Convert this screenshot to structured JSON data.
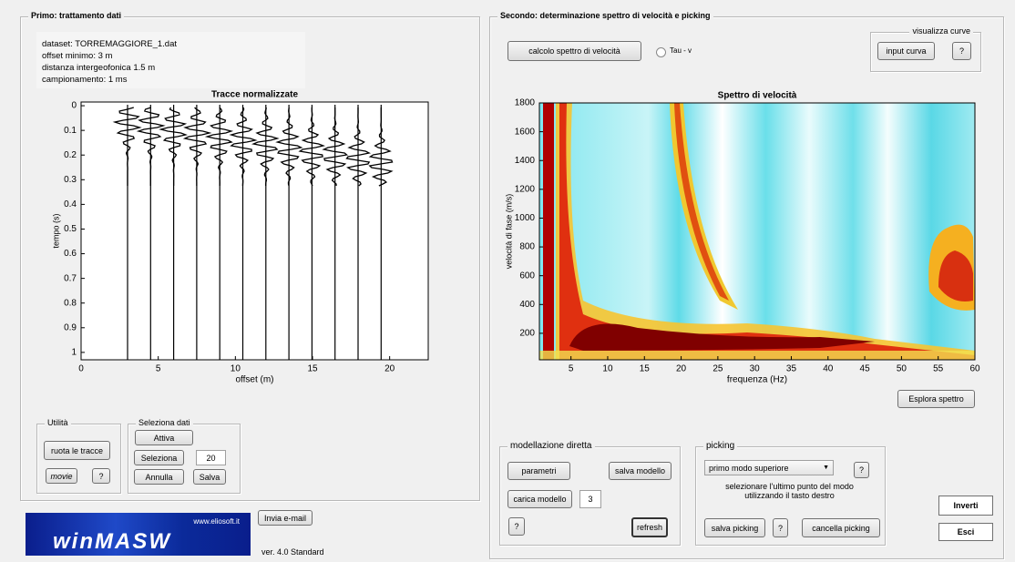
{
  "left_panel": {
    "title": "Primo: trattamento dati",
    "info": [
      "dataset: TORREMAGGIORE_1.dat",
      "offset minimo: 3 m",
      "distanza intergeofonica 1.5 m",
      "campionamento: 1 ms"
    ],
    "utilita": {
      "title": "Utilità",
      "ruota": "ruota le tracce",
      "movie": "movie",
      "help": "?"
    },
    "seleziona_dati": {
      "title": "Seleziona dati",
      "attiva": "Attiva",
      "seleziona": "Seleziona",
      "count": "20",
      "annulla": "Annulla",
      "salva": "Salva"
    }
  },
  "footer": {
    "logo_url": "www.eliosoft.it",
    "logo": "winMASW",
    "email": "Invia e-mail",
    "version": "ver. 4.0 Standard"
  },
  "right_panel": {
    "title": "Secondo: determinazione spettro di velocità e picking",
    "calcolo": "calcolo spettro di velocità",
    "radio": "Tau - v",
    "visualizza": {
      "title": "visualizza curve",
      "input": "input curva",
      "help": "?"
    },
    "esplora": "Esplora spettro",
    "modellazione": {
      "title": "modellazione diretta",
      "parametri": "parametri",
      "salva": "salva modello",
      "carica": "carica modello",
      "n": "3",
      "help": "?",
      "refresh": "refresh"
    },
    "picking": {
      "title": "picking",
      "mode": "primo modo superiore",
      "help": "?",
      "hint": [
        "selezionare l'ultimo punto del modo",
        "utilizzando il tasto destro"
      ],
      "salva": "salva picking",
      "help2": "?",
      "cancella": "cancella picking"
    },
    "inverti": "Inverti",
    "esci": "Esci"
  },
  "chart_data": [
    {
      "type": "wiggle",
      "title": "Tracce normalizzate",
      "x_label": "offset (m)",
      "y_label": "tempo (s)",
      "xlim": [
        0,
        22.5
      ],
      "ylim": [
        -0.015,
        1.03
      ],
      "y_inverted": true,
      "xticks": [
        0,
        5,
        10,
        15,
        20
      ],
      "yticks": [
        0,
        0.1,
        0.2,
        0.3,
        0.4,
        0.5,
        0.6,
        0.7,
        0.8,
        0.9,
        1
      ]
    },
    {
      "type": "heatmap",
      "title": "Spettro di velocità",
      "x_label": "frequenza (Hz)",
      "y_label": "velocità di fase (m/s)",
      "xlim": [
        0.7,
        60
      ],
      "ylim": [
        16,
        1800
      ],
      "xticks": [
        5,
        10,
        15,
        20,
        25,
        30,
        35,
        40,
        45,
        50,
        55,
        60
      ],
      "yticks": [
        200,
        400,
        600,
        800,
        1000,
        1200,
        1400,
        1600,
        1800
      ]
    }
  ]
}
